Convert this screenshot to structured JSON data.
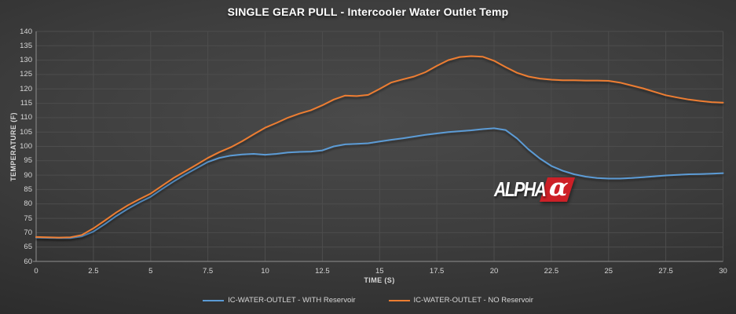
{
  "title": "SINGLE GEAR PULL - Intercooler Water Outlet Temp",
  "watermark": {
    "brand": "ALPHA",
    "symbol": "α"
  },
  "colors": {
    "background_center": "#4a4a4a",
    "background_edge": "#1f1f1f",
    "grid": "#4d4d4d",
    "axis": "#8f8f8f",
    "tick_text": "#d6d6d6",
    "title_text": "#ffffff",
    "series_blue": "#5b9bd5",
    "series_orange": "#ed7d31",
    "logo_red": "#cd2027"
  },
  "chart_data": {
    "type": "line",
    "title": "SINGLE GEAR PULL - Intercooler Water Outlet Temp",
    "xlabel": "TIME (S)",
    "ylabel": "TEMPERATURE (F)",
    "xlim": [
      0,
      30
    ],
    "ylim": [
      60,
      140
    ],
    "xticks": [
      0,
      2.5,
      5,
      7.5,
      10,
      12.5,
      15,
      17.5,
      20,
      22.5,
      25,
      27.5,
      30
    ],
    "yticks": [
      60,
      65,
      70,
      75,
      80,
      85,
      90,
      95,
      100,
      105,
      110,
      115,
      120,
      125,
      130,
      135,
      140
    ],
    "grid": true,
    "legend_position": "bottom",
    "x": [
      0,
      0.5,
      1,
      1.5,
      2,
      2.5,
      3,
      3.5,
      4,
      4.5,
      5,
      5.5,
      6,
      6.5,
      7,
      7.5,
      8,
      8.5,
      9,
      9.5,
      10,
      10.5,
      11,
      11.5,
      12,
      12.5,
      13,
      13.5,
      14,
      14.5,
      15,
      15.5,
      16,
      16.5,
      17,
      17.5,
      18,
      18.5,
      19,
      19.5,
      20,
      20.5,
      21,
      21.5,
      22,
      22.5,
      23,
      23.5,
      24,
      24.5,
      25,
      25.5,
      26,
      26.5,
      27,
      27.5,
      28,
      28.5,
      29,
      29.5,
      30
    ],
    "series": [
      {
        "name": "IC-WATER-OUTLET - WITH Reservoir",
        "color": "#5b9bd5",
        "values": [
          68.3,
          68.2,
          68.1,
          68.1,
          68.7,
          70.4,
          73,
          75.8,
          78.3,
          80.5,
          82.5,
          85.2,
          87.8,
          90.2,
          92.4,
          94.6,
          96,
          96.8,
          97.2,
          97.4,
          97.1,
          97.4,
          97.9,
          98.1,
          98.2,
          98.6,
          100,
          100.7,
          100.9,
          101.1,
          101.7,
          102.3,
          102.8,
          103.4,
          104,
          104.5,
          105,
          105.3,
          105.6,
          106,
          106.3,
          105.7,
          102.8,
          99,
          95.8,
          93.2,
          91.5,
          90.3,
          89.5,
          89,
          88.8,
          88.8,
          89,
          89.3,
          89.6,
          89.9,
          90.1,
          90.3,
          90.4,
          90.5,
          90.7
        ]
      },
      {
        "name": "IC-WATER-OUTLET - NO Reservoir",
        "color": "#ed7d31",
        "values": [
          68.5,
          68.4,
          68.3,
          68.4,
          69.2,
          71.5,
          74.2,
          77,
          79.5,
          81.6,
          83.6,
          86.3,
          89,
          91.3,
          93.6,
          96,
          98,
          99.7,
          101.8,
          104.2,
          106.5,
          108.2,
          110,
          111.4,
          112.6,
          114.3,
          116.3,
          117.7,
          117.5,
          117.9,
          120,
          122.2,
          123.3,
          124.3,
          125.8,
          128,
          130,
          131.1,
          131.4,
          131.2,
          129.8,
          127.6,
          125.6,
          124.3,
          123.6,
          123.2,
          123,
          123,
          122.9,
          122.9,
          122.8,
          122.2,
          121.2,
          120.2,
          119,
          117.8,
          117,
          116.3,
          115.8,
          115.4,
          115.2
        ]
      }
    ]
  }
}
